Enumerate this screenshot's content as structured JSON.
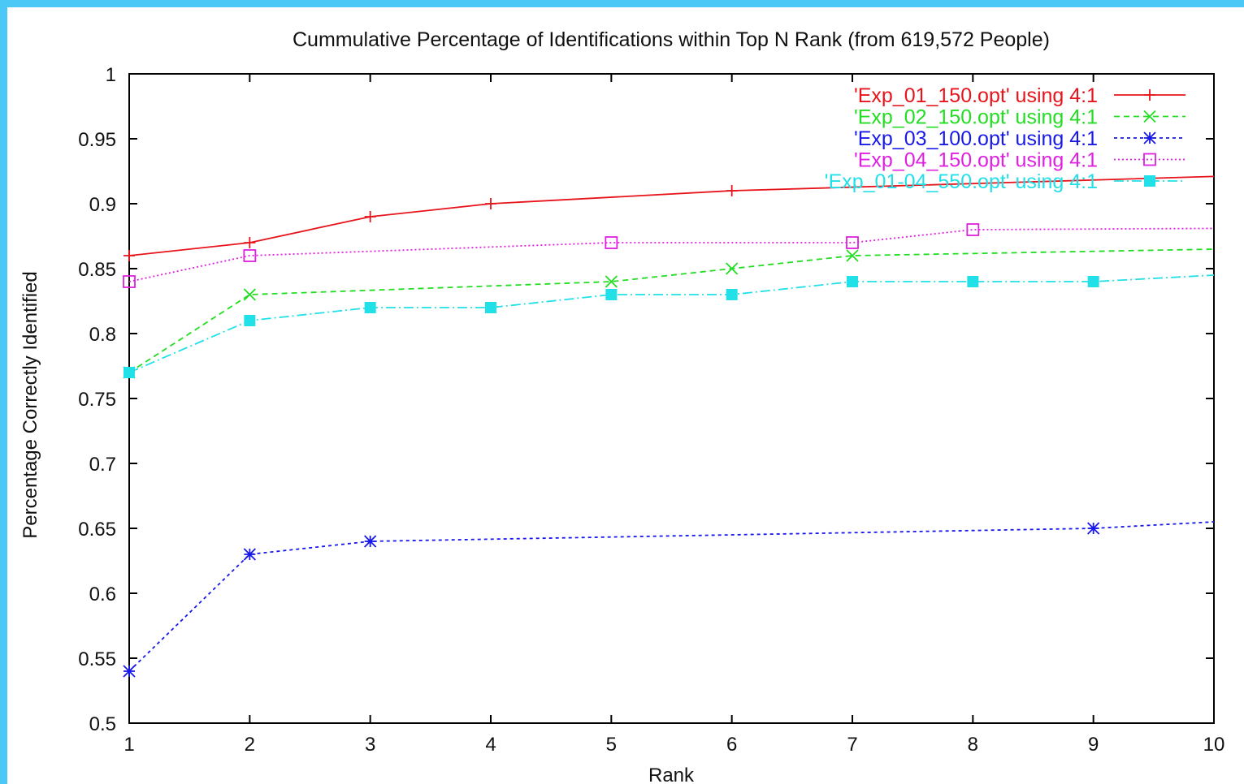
{
  "chart_data": {
    "type": "line",
    "title": "Cummulative Percentage of Identifications within Top N Rank (from 619,572 People)",
    "xlabel": "Rank",
    "ylabel": "Percentage Correctly Identified",
    "xlim": [
      1,
      10
    ],
    "ylim": [
      0.5,
      1
    ],
    "x_ticks": [
      1,
      2,
      3,
      4,
      5,
      6,
      7,
      8,
      9,
      10
    ],
    "y_ticks": [
      "0.5",
      "0.55",
      "0.6",
      "0.65",
      "0.7",
      "0.75",
      "0.8",
      "0.85",
      "0.9",
      "0.95",
      "1"
    ],
    "grid": false,
    "legend_position": "top-right",
    "series": [
      {
        "name": "'Exp_01_150.opt' using 4:1",
        "color": "#e8141c",
        "marker": "plus",
        "dash": "",
        "x": [
          1,
          2,
          3,
          4,
          6,
          10
        ],
        "y": [
          0.86,
          0.87,
          0.89,
          0.9,
          0.91,
          0.921
        ]
      },
      {
        "name": "'Exp_02_150.opt' using 4:1",
        "color": "#22dd22",
        "marker": "cross",
        "dash": "7,5",
        "x": [
          1,
          2,
          5,
          6,
          7,
          10
        ],
        "y": [
          0.77,
          0.83,
          0.84,
          0.85,
          0.86,
          0.865
        ]
      },
      {
        "name": "'Exp_03_100.opt' using 4:1",
        "color": "#1818e8",
        "marker": "star",
        "dash": "4,4",
        "x": [
          1,
          2,
          3,
          9,
          10
        ],
        "y": [
          0.54,
          0.63,
          0.64,
          0.65,
          0.655
        ]
      },
      {
        "name": "'Exp_04_150.opt' using 4:1",
        "color": "#e020e0",
        "marker": "square-open",
        "dash": "2,3",
        "x": [
          1,
          2,
          5,
          7,
          8,
          10
        ],
        "y": [
          0.84,
          0.86,
          0.87,
          0.87,
          0.88,
          0.881
        ]
      },
      {
        "name": "'Exp_01-04_550.opt' using 4:1",
        "color": "#22e0e8",
        "marker": "square-filled",
        "dash": "12,4,2,4",
        "x": [
          1,
          2,
          3,
          4,
          5,
          6,
          7,
          8,
          9,
          10
        ],
        "y": [
          0.77,
          0.81,
          0.82,
          0.82,
          0.83,
          0.83,
          0.84,
          0.84,
          0.84,
          0.845
        ]
      }
    ]
  }
}
